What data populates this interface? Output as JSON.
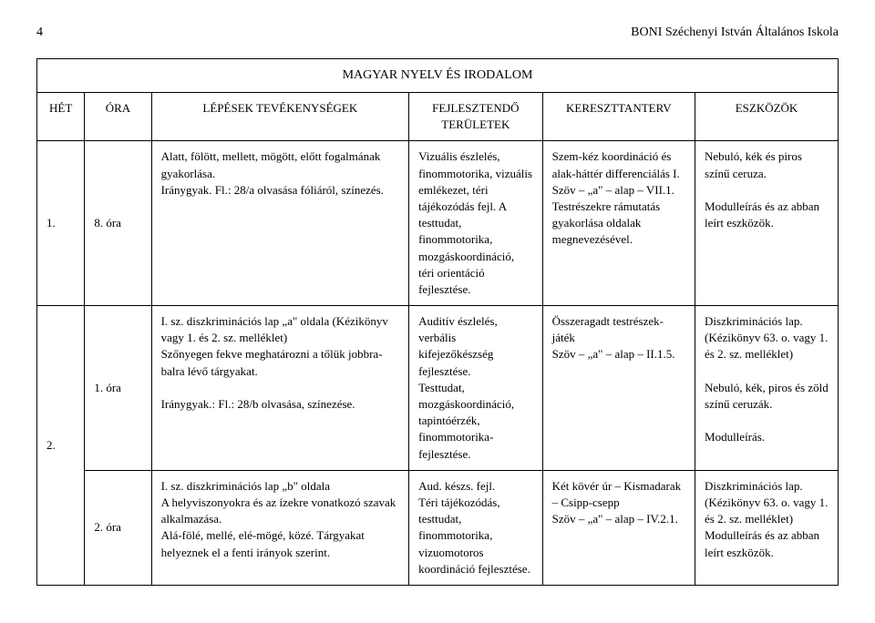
{
  "pageNumber": "4",
  "schoolName": "BONI Széchenyi István Általános Iskola",
  "subjectTitle": "MAGYAR NYELV ÉS IRODALOM",
  "columns": {
    "het": "HÉT",
    "ora": "ÓRA",
    "lepesek": "LÉPÉSEK TEVÉKENYSÉGEK",
    "fejlesztendo": "FEJLESZTENDŐ TERÜLETEK",
    "kereszttanterv": "KERESZTTANTERV",
    "eszkozok": "ESZKÖZÖK"
  },
  "rows": [
    {
      "het": "1.",
      "ora": "8. óra",
      "lepesek": "Alatt, fölött, mellett, mögött, előtt fogalmának gyakorlása.\nIránygyak. Fl.: 28/a olvasása fóliáról, színezés.",
      "fejl": "Vizuális észlelés, finommotorika, vizuális emlékezet, téri tájékozódás fejl. A testtudat, finommotorika, mozgáskoordináció, téri orientáció fejlesztése.",
      "ker": "Szem-kéz koordináció és alak-háttér differenciálás I.\nSzöv – „a\" – alap – VII.1.\nTestrészekre rámutatás gyakorlása oldalak megnevezésével.",
      "esz": "Nebuló, kék és piros színű ceruza.\n\nModulleírás és az abban leírt eszközök."
    },
    {
      "het": "2.",
      "ora": "1. óra",
      "lepesek": "I. sz. diszkriminációs lap „a\" oldala (Kézikönyv vagy 1. és 2. sz. melléklet)\nSzőnyegen fekve meghatározni a tőlük jobbra-balra lévő tárgyakat.\n\nIránygyak.: Fl.: 28/b olvasása, színezése.",
      "fejl": "Auditív észlelés, verbális kifejezőkészség fejlesztése.\nTesttudat, mozgáskoordináció, tapintóérzék, finommotorika-fejlesztése.",
      "ker": "Összeragadt testrészek-játék\nSzöv – „a\" – alap – II.1.5.",
      "esz": "Diszkriminációs lap. (Kézikönyv 63. o. vagy 1. és 2. sz. melléklet)\n\nNebuló, kék, piros és zöld színű ceruzák.\n\nModulleírás."
    },
    {
      "het": "",
      "ora": "2. óra",
      "lepesek": "I. sz. diszkriminációs lap „b\" oldala\nA helyviszonyokra és az ízekre vonatkozó szavak alkalmazása.\nAlá-fölé, mellé, elé-mögé, közé. Tárgyakat helyeznek el a fenti irányok szerint.",
      "fejl": "Aud. készs. fejl.\nTéri tájékozódás, testtudat, finommotorika, vizuomotoros koordináció fejlesztése.",
      "ker": "Két kövér úr – Kismadarak – Csipp-csepp\nSzöv – „a\" – alap – IV.2.1.",
      "esz": "Diszkriminációs lap. (Kézikönyv 63. o. vagy 1. és 2. sz. melléklet)\nModulleírás és az abban leírt eszközök."
    }
  ]
}
